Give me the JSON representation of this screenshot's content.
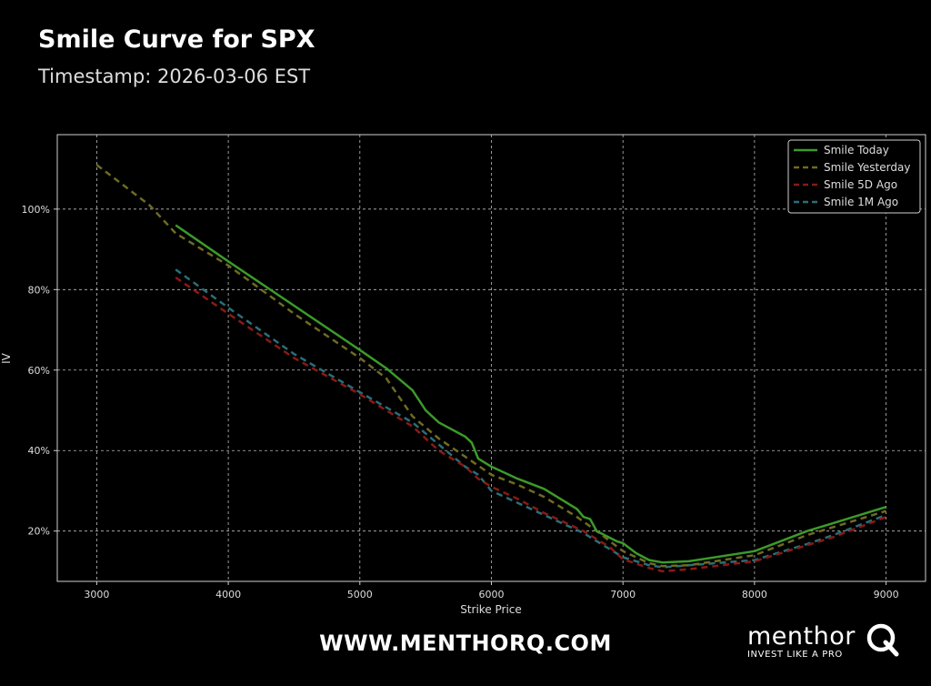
{
  "header": {
    "title": "Smile Curve for SPX",
    "subtitle": "Timestamp: 2026-03-06 EST"
  },
  "footer": {
    "url": "WWW.MENTHORQ.COM",
    "logo_word": "menthor",
    "logo_tagline": "INVEST LIKE A PRO"
  },
  "chart_data": {
    "type": "line",
    "xlabel": "Strike Price",
    "ylabel": "IV",
    "xlim": [
      2700,
      9300
    ],
    "ylim": [
      7.5,
      118.5
    ],
    "xticks": [
      3000,
      4000,
      5000,
      6000,
      7000,
      8000,
      9000
    ],
    "yticks": [
      20,
      40,
      60,
      80,
      100
    ],
    "ytick_labels": [
      "20%",
      "40%",
      "60%",
      "80%",
      "100%"
    ],
    "grid": true,
    "legend_position": "top-right",
    "series": [
      {
        "name": "Smile Today",
        "color": "#3c9a2a",
        "style": "solid",
        "points": [
          [
            3600,
            96
          ],
          [
            4000,
            87
          ],
          [
            4500,
            76
          ],
          [
            5000,
            65
          ],
          [
            5200,
            60.5
          ],
          [
            5400,
            55
          ],
          [
            5500,
            50
          ],
          [
            5600,
            47
          ],
          [
            5800,
            43.5
          ],
          [
            5850,
            42
          ],
          [
            5900,
            38
          ],
          [
            6000,
            36
          ],
          [
            6200,
            33
          ],
          [
            6400,
            30.5
          ],
          [
            6650,
            25.5
          ],
          [
            6700,
            23.5
          ],
          [
            6750,
            23
          ],
          [
            6800,
            20
          ],
          [
            6950,
            17.5
          ],
          [
            7000,
            17
          ],
          [
            7100,
            14.5
          ],
          [
            7200,
            12.8
          ],
          [
            7300,
            12.2
          ],
          [
            7500,
            12.5
          ],
          [
            8000,
            15
          ],
          [
            8200,
            17.5
          ],
          [
            8400,
            20
          ],
          [
            8600,
            22
          ],
          [
            9000,
            26
          ]
        ]
      },
      {
        "name": "Smile Yesterday",
        "color": "#6e6b23",
        "style": "dashed",
        "points": [
          [
            3000,
            111
          ],
          [
            3400,
            101
          ],
          [
            3600,
            94
          ],
          [
            4000,
            86
          ],
          [
            4500,
            74
          ],
          [
            5000,
            63
          ],
          [
            5200,
            58
          ],
          [
            5400,
            48.5
          ],
          [
            5600,
            43
          ],
          [
            5800,
            38.5
          ],
          [
            6000,
            34
          ],
          [
            6200,
            31.5
          ],
          [
            6400,
            28.5
          ],
          [
            6650,
            23.5
          ],
          [
            6800,
            20
          ],
          [
            7000,
            15
          ],
          [
            7200,
            12
          ],
          [
            7300,
            11.3
          ],
          [
            7500,
            11.5
          ],
          [
            8000,
            14
          ],
          [
            8200,
            16.5
          ],
          [
            8400,
            19
          ],
          [
            8600,
            21
          ],
          [
            9000,
            25
          ]
        ]
      },
      {
        "name": "Smile 5D Ago",
        "color": "#8a1a14",
        "style": "dashed",
        "points": [
          [
            3600,
            83
          ],
          [
            4000,
            74
          ],
          [
            4500,
            63
          ],
          [
            5000,
            54
          ],
          [
            5400,
            46
          ],
          [
            5600,
            40
          ],
          [
            5800,
            36
          ],
          [
            5900,
            33
          ],
          [
            6000,
            31
          ],
          [
            6200,
            28
          ],
          [
            6400,
            24.5
          ],
          [
            6700,
            20
          ],
          [
            6900,
            16
          ],
          [
            7000,
            13
          ],
          [
            7200,
            10.8
          ],
          [
            7300,
            10
          ],
          [
            7500,
            10.5
          ],
          [
            8000,
            12.5
          ],
          [
            8200,
            14.5
          ],
          [
            8400,
            16.5
          ],
          [
            8600,
            18.5
          ],
          [
            9000,
            23.5
          ]
        ]
      },
      {
        "name": "Smile 1M Ago",
        "color": "#2a6e78",
        "style": "dashed",
        "points": [
          [
            3600,
            85
          ],
          [
            4000,
            75.5
          ],
          [
            4500,
            64
          ],
          [
            5000,
            54.5
          ],
          [
            5400,
            47
          ],
          [
            5600,
            41.5
          ],
          [
            5800,
            36
          ],
          [
            5900,
            34
          ],
          [
            6000,
            30
          ],
          [
            6200,
            27
          ],
          [
            6400,
            24
          ],
          [
            6700,
            19.5
          ],
          [
            6900,
            15.5
          ],
          [
            7000,
            13.5
          ],
          [
            7200,
            11.5
          ],
          [
            7300,
            11
          ],
          [
            7500,
            11.5
          ],
          [
            8000,
            12.8
          ],
          [
            8200,
            14.8
          ],
          [
            8400,
            16.8
          ],
          [
            8600,
            19
          ],
          [
            9000,
            24
          ]
        ]
      }
    ]
  }
}
